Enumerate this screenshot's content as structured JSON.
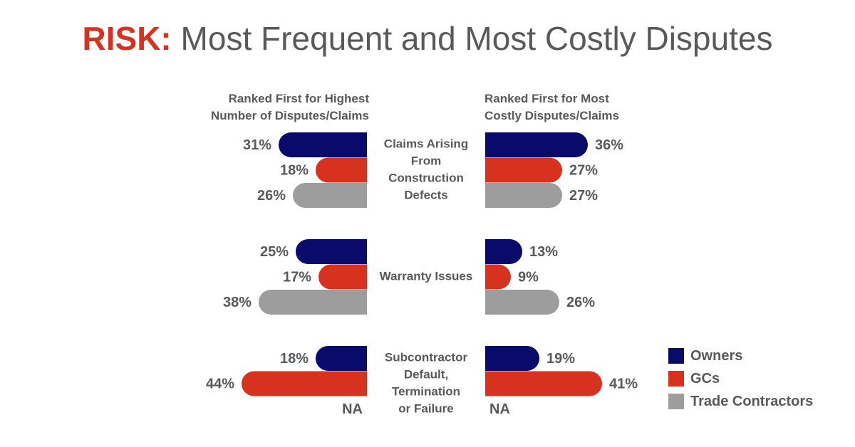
{
  "title": {
    "accent": "RISK:",
    "rest": " Most Frequent and Most Costly Disputes"
  },
  "panels": {
    "left_heading_line1": "Ranked First for Highest",
    "left_heading_line2": "Number of Disputes/Claims",
    "right_heading_line1": "Ranked First for Most",
    "right_heading_line2": "Costly Disputes/Claims"
  },
  "legend": [
    {
      "label": "Owners",
      "color": "#0a0a6b"
    },
    {
      "label": "GCs",
      "color": "#d7311f"
    },
    {
      "label": "Trade Contractors",
      "color": "#9d9d9d"
    }
  ],
  "chart_data": {
    "type": "bar",
    "orientation": "horizontal",
    "layout": "mirrored",
    "value_suffix": "%",
    "na_label": "NA",
    "panels": [
      "Ranked First for Highest Number of Disputes/Claims",
      "Ranked First for Most Costly Disputes/Claims"
    ],
    "categories": [
      {
        "label_lines": [
          "Claims Arising",
          "From",
          "Construction",
          "Defects"
        ]
      },
      {
        "label_lines": [
          "Warranty Issues"
        ]
      },
      {
        "label_lines": [
          "Subcontractor",
          "Default,",
          "Termination",
          "or Failure"
        ]
      }
    ],
    "series": [
      {
        "name": "Owners",
        "color": "#0a0a6b",
        "most_frequent": [
          31,
          25,
          18
        ],
        "most_costly": [
          36,
          13,
          19
        ]
      },
      {
        "name": "GCs",
        "color": "#d7311f",
        "most_frequent": [
          18,
          17,
          44
        ],
        "most_costly": [
          27,
          9,
          41
        ]
      },
      {
        "name": "Trade Contractors",
        "color": "#9d9d9d",
        "most_frequent": [
          26,
          38,
          null
        ],
        "most_costly": [
          27,
          26,
          null
        ]
      }
    ]
  }
}
